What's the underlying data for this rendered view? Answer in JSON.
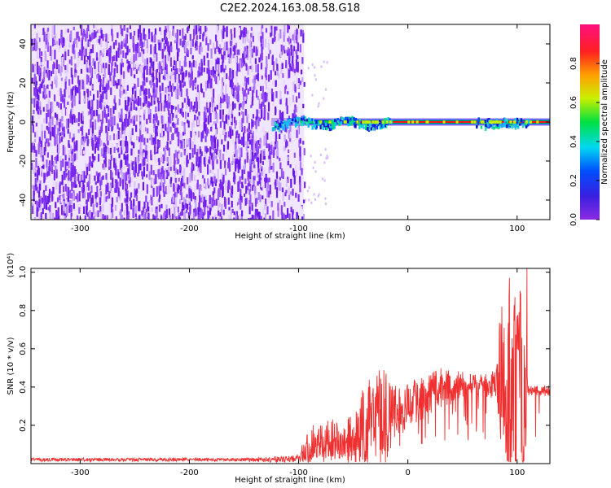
{
  "figure": {
    "title": "C2E2.2024.163.08.58.G18"
  },
  "colors": {
    "snr_line": "#f03030",
    "frame": "#000000",
    "noise_purple": "#7a20f0",
    "noise_light": "#d8b8ff",
    "dc_line_center": "#ff1010",
    "dc_line_edge": "#00c050"
  },
  "chart_data": [
    {
      "id": "spectrogram",
      "type": "heatmap",
      "xlabel": "Height of straight line (km)",
      "ylabel": "Frequency (Hz)",
      "xlim": [
        -345,
        130
      ],
      "ylim": [
        -50,
        50
      ],
      "x_ticks": [
        -300,
        -200,
        -100,
        0,
        100
      ],
      "x_tick_labels": [
        "-300",
        "-200",
        "-100",
        "0",
        "100"
      ],
      "y_ticks": [
        -40,
        -20,
        0,
        20,
        40
      ],
      "y_tick_labels": [
        "-40",
        "-20",
        "0",
        "20",
        "40"
      ],
      "colorbar": {
        "label": "Normalized spectral amplitude",
        "range": [
          0.0,
          1.0
        ],
        "ticks": [
          0.0,
          0.2,
          0.4,
          0.6,
          0.8
        ],
        "tick_labels": [
          "0.0",
          "0.2",
          "0.4",
          "0.6",
          "0.8"
        ],
        "colormap": "rainbow (purple-blue-cyan-green-yellow-red-magenta)"
      },
      "features": [
        {
          "description": "broadband noise",
          "x_range": [
            -345,
            -95
          ],
          "y_range": [
            -50,
            50
          ],
          "amplitude": 0.1
        },
        {
          "description": "narrow signal near 0 Hz",
          "x_range": [
            -125,
            130
          ],
          "y_center": 0,
          "amplitude": 0.9
        }
      ]
    },
    {
      "id": "snr",
      "type": "line",
      "xlabel": "Height of straight line (km)",
      "ylabel": "SNR (10 * v/v)",
      "y_scale_label": "(x10⁴)",
      "xlim": [
        -345,
        130
      ],
      "ylim": [
        0,
        1.02
      ],
      "x_ticks": [
        -300,
        -200,
        -100,
        0,
        100
      ],
      "x_tick_labels": [
        "-300",
        "-200",
        "-100",
        "0",
        "100"
      ],
      "y_ticks": [
        0.2,
        0.4,
        0.6,
        0.8,
        1.0
      ],
      "y_tick_labels": [
        "0.2",
        "0.4",
        "0.6",
        "0.8",
        "1.0"
      ],
      "series": [
        {
          "color": "#f03030",
          "x": [
            -345,
            -300,
            -250,
            -200,
            -150,
            -110,
            -100,
            -90,
            -80,
            -70,
            -60,
            -50,
            -40,
            -30,
            -20,
            -10,
            0,
            10,
            20,
            30,
            40,
            50,
            60,
            70,
            80,
            85,
            90,
            95,
            100,
            105,
            110,
            115,
            120,
            130
          ],
          "y": [
            0.02,
            0.02,
            0.02,
            0.02,
            0.02,
            0.02,
            0.03,
            0.08,
            0.1,
            0.12,
            0.1,
            0.12,
            0.15,
            0.2,
            0.22,
            0.26,
            0.3,
            0.33,
            0.36,
            0.38,
            0.39,
            0.4,
            0.41,
            0.41,
            0.42,
            0.4,
            0.35,
            0.3,
            0.25,
            0.3,
            0.38,
            0.39,
            0.38,
            0.38
          ],
          "envelope": [
            0.03,
            0.03,
            0.03,
            0.03,
            0.03,
            0.04,
            0.05,
            0.22,
            0.2,
            0.25,
            0.18,
            0.3,
            0.4,
            0.48,
            0.5,
            0.4,
            0.43,
            0.45,
            0.48,
            0.5,
            0.5,
            0.48,
            0.47,
            0.48,
            0.5,
            0.8,
            0.97,
            0.9,
            0.8,
            1.02,
            0.42,
            0.42,
            0.41,
            0.41
          ]
        }
      ],
      "peaks": [
        {
          "x": 86,
          "y": 0.82
        },
        {
          "x": 93,
          "y": 0.97
        },
        {
          "x": 98,
          "y": 0.87
        },
        {
          "x": 103,
          "y": 0.89
        },
        {
          "x": 109,
          "y": 1.02
        }
      ]
    }
  ]
}
